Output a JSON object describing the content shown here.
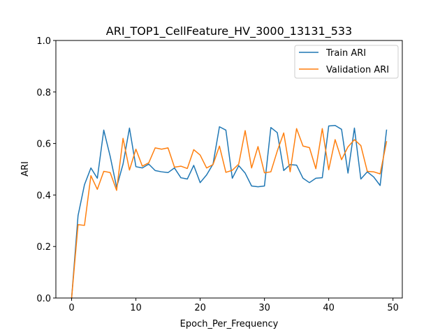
{
  "chart_data": {
    "type": "line",
    "title": "ARI_TOP1_CellFeature_HV_3000_13131_533",
    "xlabel": "Epoch_Per_Frequency",
    "ylabel": "ARI",
    "xlim": [
      -2.45,
      51.45
    ],
    "ylim": [
      0,
      1.0
    ],
    "xticks": [
      0,
      10,
      20,
      30,
      40,
      50
    ],
    "xtick_labels": [
      "0",
      "10",
      "20",
      "30",
      "40",
      "50"
    ],
    "yticks": [
      0,
      0.2,
      0.4,
      0.6,
      0.8,
      1.0
    ],
    "ytick_labels": [
      "0.0",
      "0.2",
      "0.4",
      "0.6",
      "0.8",
      "1.0"
    ],
    "grid": false,
    "legend_position": "top-right",
    "x": [
      0,
      1,
      2,
      3,
      4,
      5,
      6,
      7,
      8,
      9,
      10,
      11,
      12,
      13,
      14,
      15,
      16,
      17,
      18,
      19,
      20,
      21,
      22,
      23,
      24,
      25,
      26,
      27,
      28,
      29,
      30,
      31,
      32,
      33,
      34,
      35,
      36,
      37,
      38,
      39,
      40,
      41,
      42,
      43,
      44,
      45,
      46,
      47,
      48,
      49
    ],
    "series": [
      {
        "name": "Train ARI",
        "color": "#1f77b4",
        "values": [
          0.0,
          0.32,
          0.44,
          0.505,
          0.465,
          0.652,
          0.55,
          0.43,
          0.52,
          0.66,
          0.51,
          0.505,
          0.52,
          0.495,
          0.49,
          0.487,
          0.505,
          0.467,
          0.462,
          0.515,
          0.448,
          0.478,
          0.52,
          0.665,
          0.652,
          0.465,
          0.514,
          0.485,
          0.435,
          0.432,
          0.435,
          0.662,
          0.642,
          0.495,
          0.518,
          0.516,
          0.465,
          0.448,
          0.465,
          0.467,
          0.668,
          0.67,
          0.655,
          0.485,
          0.66,
          0.462,
          0.49,
          0.47,
          0.437,
          0.652
        ]
      },
      {
        "name": "Validation ARI",
        "color": "#ff7f0e",
        "values": [
          0.0,
          0.285,
          0.282,
          0.475,
          0.422,
          0.492,
          0.487,
          0.418,
          0.62,
          0.497,
          0.578,
          0.512,
          0.525,
          0.583,
          0.578,
          0.583,
          0.508,
          0.512,
          0.503,
          0.576,
          0.555,
          0.505,
          0.518,
          0.59,
          0.488,
          0.496,
          0.52,
          0.65,
          0.505,
          0.588,
          0.486,
          0.49,
          0.571,
          0.641,
          0.49,
          0.658,
          0.59,
          0.584,
          0.502,
          0.658,
          0.498,
          0.615,
          0.537,
          0.587,
          0.615,
          0.592,
          0.492,
          0.49,
          0.482,
          0.607
        ]
      }
    ]
  }
}
